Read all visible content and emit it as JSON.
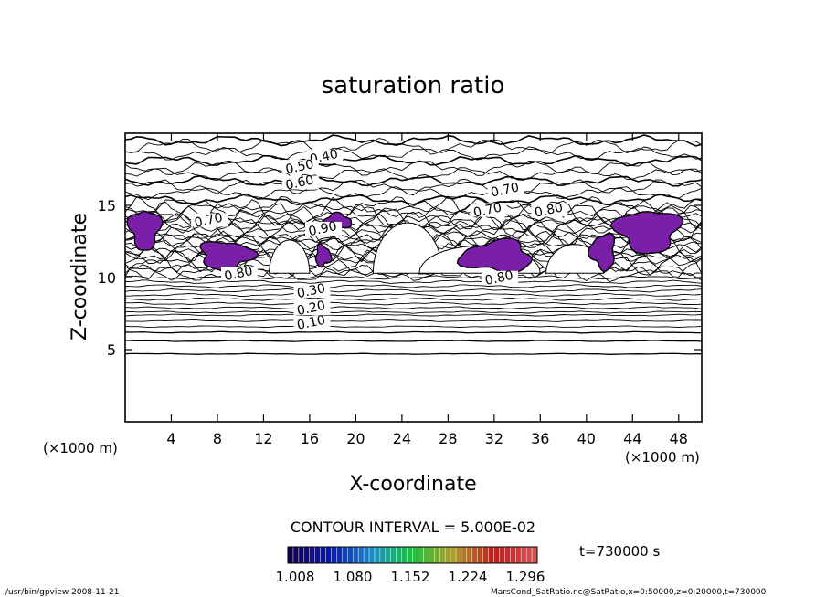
{
  "chart_data": {
    "type": "contour",
    "title": "saturation ratio",
    "xlabel": "X-coordinate",
    "ylabel": "Z-coordinate",
    "x_unit": "(×1000 m)",
    "z_unit": "(×1000 m)",
    "xlim": [
      0,
      50
    ],
    "ylim": [
      0,
      20
    ],
    "x_ticks": [
      4,
      8,
      12,
      16,
      20,
      24,
      28,
      32,
      36,
      40,
      44,
      48
    ],
    "y_ticks": [
      5,
      10,
      15
    ],
    "contour_interval_text": "CONTOUR INTERVAL = 5.000E-02",
    "contour_labels": [
      {
        "text": "0.40",
        "x": 17.3,
        "z": 18.1
      },
      {
        "text": "0.50",
        "x": 15.2,
        "z": 17.4
      },
      {
        "text": "0.60",
        "x": 15.2,
        "z": 16.3
      },
      {
        "text": "0.70",
        "x": 33.0,
        "z": 15.8
      },
      {
        "text": "0.70",
        "x": 7.3,
        "z": 13.7
      },
      {
        "text": "0.70",
        "x": 31.5,
        "z": 14.4
      },
      {
        "text": "0.80",
        "x": 36.8,
        "z": 14.4
      },
      {
        "text": "0.90",
        "x": 17.2,
        "z": 13.1
      },
      {
        "text": "0.80",
        "x": 9.9,
        "z": 10.0
      },
      {
        "text": "0.80",
        "x": 32.5,
        "z": 9.7
      },
      {
        "text": "0.30",
        "x": 16.2,
        "z": 8.8
      },
      {
        "text": "0.20",
        "x": 16.2,
        "z": 7.6
      },
      {
        "text": "0.10",
        "x": 16.2,
        "z": 6.6
      }
    ],
    "supersaturated_regions": [
      {
        "x_range": [
          0.4,
          3.0
        ],
        "z_range": [
          12.0,
          14.7
        ]
      },
      {
        "x_range": [
          6.5,
          11.0
        ],
        "z_range": [
          10.6,
          12.5
        ]
      },
      {
        "x_range": [
          16.5,
          17.8
        ],
        "z_range": [
          10.8,
          12.2
        ]
      },
      {
        "x_range": [
          17.2,
          19.6
        ],
        "z_range": [
          13.4,
          14.4
        ]
      },
      {
        "x_range": [
          29.2,
          35.3
        ],
        "z_range": [
          10.4,
          12.5
        ]
      },
      {
        "x_range": [
          40.4,
          42.5
        ],
        "z_range": [
          10.6,
          13.0
        ]
      },
      {
        "x_range": [
          42.7,
          48.0
        ],
        "z_range": [
          11.8,
          14.7
        ]
      }
    ],
    "colorbar": {
      "ticks": [
        "1.008",
        "1.080",
        "1.152",
        "1.224",
        "1.296"
      ],
      "colors": [
        "#140050",
        "#0818b8",
        "#1a8cc8",
        "#20c040",
        "#b09c28",
        "#c81818",
        "#d85050"
      ]
    },
    "time_label": "t=730000 s",
    "footer_left": "/usr/bin/gpview   2008-11-21",
    "footer_right": "MarsCond_SatRatio.nc@SatRatio,x=0:50000,z=0:20000,t=730000"
  }
}
